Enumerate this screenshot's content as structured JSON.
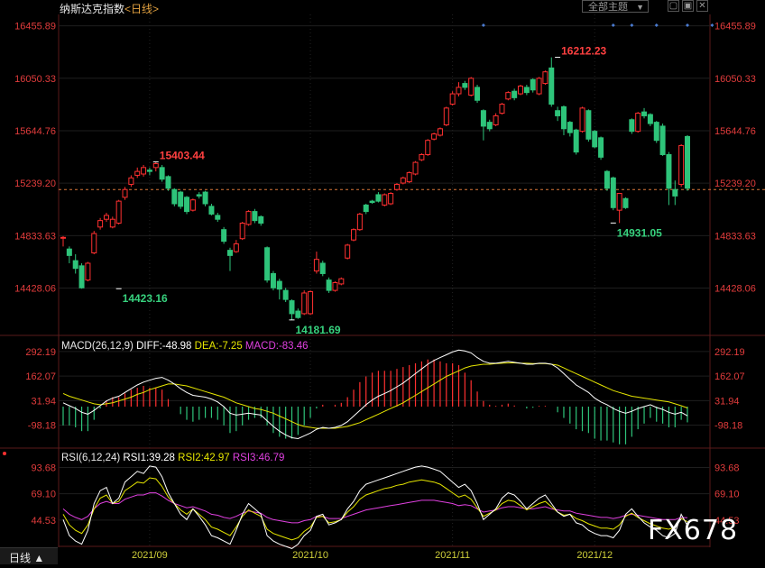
{
  "header": {
    "title": "纳斯达克指数",
    "period": "<日线>",
    "theme_button": "全部主题",
    "buttons": [
      "▢",
      "▣",
      "✕"
    ]
  },
  "bottom": {
    "period_button": "日线 ▲"
  },
  "watermark": "FX678",
  "chart_data": [
    {
      "type": "candlestick",
      "title": "纳斯达克指数<日线>",
      "x_labels": [
        "2021/09",
        "2021/10",
        "2021/11",
        "2021/12"
      ],
      "yticks": [
        16455.89,
        16050.33,
        15644.76,
        15239.2,
        14833.63,
        14428.06
      ],
      "ylim": [
        14090,
        16530
      ],
      "reference_line": 15190,
      "annotations": [
        {
          "text": "15403.44",
          "value": 15403.44,
          "kind": "high"
        },
        {
          "text": "16212.23",
          "value": 16212.23,
          "kind": "high"
        },
        {
          "text": "14423.16",
          "value": 14423.16,
          "kind": "low"
        },
        {
          "text": "14181.69",
          "value": 14181.69,
          "kind": "low"
        },
        {
          "text": "14931.05",
          "value": 14931.05,
          "kind": "low"
        }
      ],
      "candles": [
        [
          14820,
          14820,
          14750,
          14830
        ],
        [
          14730,
          14680,
          14620,
          14750
        ],
        [
          14640,
          14580,
          14540,
          14690
        ],
        [
          14600,
          14430,
          14423,
          14620
        ],
        [
          14490,
          14620,
          14480,
          14630
        ],
        [
          14700,
          14850,
          14690,
          14870
        ],
        [
          14900,
          14950,
          14880,
          14970
        ],
        [
          14960,
          14990,
          14940,
          15010
        ],
        [
          14900,
          14960,
          14890,
          14980
        ],
        [
          14930,
          15100,
          14920,
          15110
        ],
        [
          15130,
          15190,
          15110,
          15210
        ],
        [
          15230,
          15280,
          15210,
          15300
        ],
        [
          15300,
          15330,
          15280,
          15360
        ],
        [
          15310,
          15360,
          15290,
          15380
        ],
        [
          15340,
          15330,
          15300,
          15360
        ],
        [
          15360,
          15390,
          15330,
          15403
        ],
        [
          15360,
          15270,
          15250,
          15380
        ],
        [
          15290,
          15200,
          15180,
          15300
        ],
        [
          15190,
          15080,
          15060,
          15200
        ],
        [
          15170,
          15060,
          15040,
          15180
        ],
        [
          15130,
          15020,
          15000,
          15140
        ],
        [
          15030,
          15110,
          15020,
          15120
        ],
        [
          15150,
          15140,
          15120,
          15170
        ],
        [
          15170,
          15080,
          15060,
          15180
        ],
        [
          15060,
          15000,
          14990,
          15080
        ],
        [
          14990,
          14960,
          14940,
          15010
        ],
        [
          14880,
          14790,
          14770,
          14900
        ],
        [
          14720,
          14680,
          14560,
          14740
        ],
        [
          14710,
          14770,
          14700,
          14800
        ],
        [
          14810,
          14930,
          14800,
          14940
        ],
        [
          14920,
          15020,
          14910,
          15030
        ],
        [
          15020,
          14950,
          14930,
          15040
        ],
        [
          14980,
          14930,
          14910,
          14990
        ],
        [
          14740,
          14490,
          14470,
          14750
        ],
        [
          14540,
          14430,
          14410,
          14560
        ],
        [
          14480,
          14420,
          14340,
          14500
        ],
        [
          14410,
          14340,
          14320,
          14430
        ],
        [
          14330,
          14230,
          14181,
          14340
        ],
        [
          14250,
          14200,
          14190,
          14270
        ],
        [
          14230,
          14390,
          14220,
          14410
        ],
        [
          14230,
          14400,
          14220,
          14410
        ],
        [
          14560,
          14650,
          14540,
          14710
        ],
        [
          14620,
          14540,
          14520,
          14640
        ],
        [
          14490,
          14410,
          14390,
          14510
        ],
        [
          14410,
          14470,
          14400,
          14480
        ],
        [
          14460,
          14500,
          14450,
          14510
        ],
        [
          14660,
          14760,
          14650,
          14770
        ],
        [
          14800,
          14880,
          14790,
          14890
        ],
        [
          14880,
          15000,
          14870,
          15010
        ],
        [
          15070,
          15020,
          15000,
          15080
        ],
        [
          15100,
          15090,
          15080,
          15110
        ],
        [
          15150,
          15100,
          15090,
          15170
        ],
        [
          15070,
          15150,
          15060,
          15160
        ],
        [
          15080,
          15160,
          15070,
          15170
        ],
        [
          15190,
          15230,
          15180,
          15240
        ],
        [
          15240,
          15280,
          15230,
          15290
        ],
        [
          15250,
          15320,
          15240,
          15330
        ],
        [
          15310,
          15400,
          15300,
          15410
        ],
        [
          15420,
          15460,
          15410,
          15470
        ],
        [
          15460,
          15570,
          15450,
          15580
        ],
        [
          15580,
          15620,
          15570,
          15630
        ],
        [
          15610,
          15660,
          15600,
          15670
        ],
        [
          15690,
          15820,
          15680,
          15830
        ],
        [
          15850,
          15930,
          15840,
          15950
        ],
        [
          15930,
          15980,
          15910,
          16020
        ],
        [
          16010,
          15980,
          15960,
          16030
        ],
        [
          15920,
          16050,
          15910,
          16060
        ],
        [
          15980,
          15880,
          15860,
          16000
        ],
        [
          15800,
          15680,
          15570,
          15810
        ],
        [
          15710,
          15660,
          15640,
          15730
        ],
        [
          15690,
          15760,
          15680,
          15780
        ],
        [
          15780,
          15850,
          15770,
          15860
        ],
        [
          15890,
          15940,
          15880,
          15950
        ],
        [
          15950,
          15900,
          15880,
          15970
        ],
        [
          15930,
          15990,
          15920,
          16000
        ],
        [
          15980,
          15940,
          15920,
          16000
        ],
        [
          16040,
          15960,
          15940,
          16050
        ],
        [
          15930,
          16050,
          15920,
          16060
        ],
        [
          16010,
          16100,
          16000,
          16110
        ],
        [
          16130,
          15850,
          15830,
          16212
        ],
        [
          15800,
          15760,
          15720,
          15830
        ],
        [
          15830,
          15660,
          15610,
          15840
        ],
        [
          15710,
          15630,
          15600,
          15720
        ],
        [
          15650,
          15480,
          15460,
          15660
        ],
        [
          15640,
          15820,
          15630,
          15830
        ],
        [
          15800,
          15580,
          15560,
          15810
        ],
        [
          15640,
          15520,
          15510,
          15650
        ],
        [
          15590,
          15440,
          15420,
          15600
        ],
        [
          15330,
          15200,
          15180,
          15340
        ],
        [
          15280,
          15050,
          15030,
          15290
        ],
        [
          15030,
          15160,
          14931,
          15160
        ],
        [
          15120,
          15050,
          15040,
          15130
        ],
        [
          15730,
          15640,
          15620,
          15740
        ],
        [
          15640,
          15780,
          15630,
          15790
        ],
        [
          15790,
          15760,
          15740,
          15820
        ],
        [
          15770,
          15700,
          15680,
          15780
        ],
        [
          15710,
          15570,
          15550,
          15720
        ],
        [
          15680,
          15460,
          15450,
          15700
        ],
        [
          15460,
          15200,
          15070,
          15480
        ],
        [
          15190,
          15140,
          15070,
          15260
        ],
        [
          15230,
          15530,
          15210,
          15540
        ],
        [
          15600,
          15200,
          15180,
          15610
        ]
      ]
    },
    {
      "type": "macd",
      "title": "MACD(26,12,9)",
      "label_diff": "DIFF:-48.98",
      "label_dea": "DEA:-7.25",
      "label_macd": "MACD:-83.46",
      "yticks": [
        292.19,
        162.07,
        31.94,
        -98.18
      ],
      "ylim": [
        -220,
        330
      ],
      "diff": [
        20,
        5,
        -10,
        -30,
        -40,
        -20,
        5,
        30,
        45,
        55,
        75,
        95,
        115,
        130,
        140,
        150,
        155,
        140,
        120,
        95,
        75,
        60,
        55,
        50,
        40,
        25,
        0,
        -35,
        -45,
        -40,
        -35,
        -40,
        -45,
        -75,
        -105,
        -130,
        -150,
        -165,
        -170,
        -155,
        -140,
        -120,
        -110,
        -115,
        -110,
        -100,
        -80,
        -50,
        -20,
        10,
        35,
        55,
        70,
        85,
        105,
        125,
        150,
        175,
        200,
        225,
        245,
        260,
        275,
        290,
        300,
        295,
        285,
        260,
        240,
        230,
        230,
        235,
        240,
        235,
        230,
        225,
        225,
        230,
        230,
        225,
        205,
        175,
        145,
        115,
        95,
        75,
        45,
        25,
        10,
        -10,
        -25,
        -35,
        -25,
        -10,
        0,
        10,
        -5,
        -15,
        -30,
        -40,
        -30,
        -48.98
      ],
      "dea": [
        70,
        55,
        45,
        35,
        25,
        15,
        10,
        15,
        20,
        30,
        40,
        50,
        65,
        75,
        90,
        100,
        110,
        120,
        120,
        115,
        110,
        100,
        90,
        80,
        70,
        60,
        50,
        35,
        20,
        10,
        0,
        -10,
        -15,
        -25,
        -35,
        -50,
        -65,
        -80,
        -95,
        -105,
        -110,
        -115,
        -115,
        -115,
        -115,
        -110,
        -105,
        -95,
        -85,
        -70,
        -55,
        -40,
        -25,
        -10,
        5,
        20,
        40,
        60,
        80,
        100,
        120,
        140,
        160,
        175,
        190,
        205,
        215,
        220,
        225,
        225,
        228,
        230,
        232,
        232,
        230,
        230,
        228,
        228,
        228,
        225,
        220,
        205,
        190,
        175,
        160,
        145,
        130,
        115,
        100,
        85,
        75,
        65,
        55,
        50,
        45,
        40,
        35,
        30,
        25,
        15,
        5,
        -7.25
      ]
    },
    {
      "type": "line",
      "title": "RSI(6,12,24)",
      "label_rsi1": "RSI1:39.28",
      "label_rsi2": "RSI2:42.97",
      "label_rsi3": "RSI3:46.79",
      "yticks": [
        93.68,
        69.1,
        44.53
      ],
      "ylim": [
        20,
        105
      ],
      "rsi1": [
        45,
        30,
        25,
        22,
        35,
        60,
        72,
        75,
        60,
        65,
        80,
        85,
        90,
        88,
        95,
        94,
        85,
        70,
        60,
        50,
        45,
        55,
        48,
        40,
        30,
        28,
        25,
        22,
        35,
        50,
        60,
        55,
        50,
        30,
        25,
        22,
        20,
        18,
        22,
        30,
        35,
        48,
        50,
        40,
        42,
        45,
        55,
        62,
        72,
        78,
        80,
        82,
        84,
        86,
        88,
        90,
        92,
        94,
        95,
        94,
        92,
        90,
        85,
        80,
        75,
        78,
        72,
        60,
        45,
        50,
        55,
        65,
        70,
        68,
        62,
        55,
        60,
        65,
        68,
        60,
        52,
        48,
        50,
        42,
        40,
        35,
        32,
        30,
        30,
        28,
        35,
        50,
        55,
        48,
        42,
        38,
        35,
        30,
        28,
        32,
        50,
        39.28
      ],
      "rsi2": [
        50,
        40,
        35,
        32,
        40,
        55,
        65,
        68,
        60,
        62,
        72,
        76,
        80,
        79,
        84,
        83,
        76,
        66,
        60,
        54,
        50,
        55,
        50,
        45,
        38,
        36,
        33,
        30,
        38,
        48,
        54,
        51,
        48,
        36,
        32,
        30,
        28,
        26,
        28,
        34,
        38,
        47,
        48,
        42,
        43,
        45,
        52,
        57,
        64,
        68,
        70,
        72,
        74,
        75,
        77,
        78,
        80,
        81,
        82,
        81,
        80,
        78,
        74,
        70,
        66,
        68,
        64,
        56,
        48,
        51,
        54,
        60,
        63,
        62,
        58,
        54,
        57,
        60,
        62,
        57,
        52,
        49,
        50,
        46,
        44,
        41,
        39,
        37,
        37,
        36,
        40,
        48,
        51,
        47,
        44,
        41,
        39,
        37,
        36,
        38,
        46,
        42.97
      ],
      "rsi3": [
        55,
        50,
        47,
        45,
        48,
        55,
        60,
        62,
        60,
        60,
        64,
        66,
        68,
        68,
        70,
        70,
        67,
        63,
        60,
        58,
        56,
        57,
        55,
        53,
        50,
        49,
        47,
        46,
        48,
        51,
        53,
        52,
        51,
        47,
        45,
        44,
        43,
        42,
        42,
        44,
        45,
        48,
        48,
        46,
        46,
        46,
        48,
        50,
        52,
        54,
        55,
        56,
        57,
        58,
        59,
        60,
        61,
        62,
        63,
        63,
        63,
        62,
        61,
        60,
        58,
        59,
        58,
        55,
        52,
        53,
        54,
        56,
        57,
        57,
        56,
        55,
        55,
        56,
        57,
        55,
        54,
        53,
        53,
        51,
        50,
        49,
        48,
        47,
        47,
        46,
        47,
        49,
        50,
        49,
        48,
        47,
        46,
        45,
        45,
        45,
        47,
        46.79
      ]
    }
  ],
  "colors": {
    "up": "#ff3030",
    "down": "#2ec47a",
    "axis_text": "#e23c3c",
    "grid": "#3a3a3a",
    "diff": "#ffffff",
    "dea": "#e6e600",
    "rsi3": "#e040e0",
    "date_text": "#cfcf3a",
    "high_label": "#ff4040",
    "low_label": "#37d27e"
  }
}
